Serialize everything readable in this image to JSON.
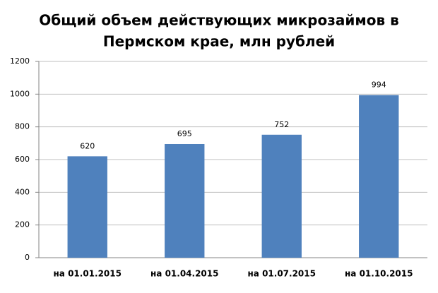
{
  "chart_data": {
    "type": "bar",
    "title": [
      "Общий объем действующих микрозаймов в",
      "Пермском крае, млн рублей"
    ],
    "categories": [
      "на 01.01.2015",
      "на 01.04.2015",
      "на 01.07.2015",
      "на 01.10.2015"
    ],
    "values": [
      620,
      695,
      752,
      994
    ],
    "color": "#4f81bd",
    "ylim": [
      0,
      1200
    ],
    "yticks": [
      0,
      200,
      400,
      600,
      800,
      1000,
      1200
    ],
    "grid": true
  }
}
